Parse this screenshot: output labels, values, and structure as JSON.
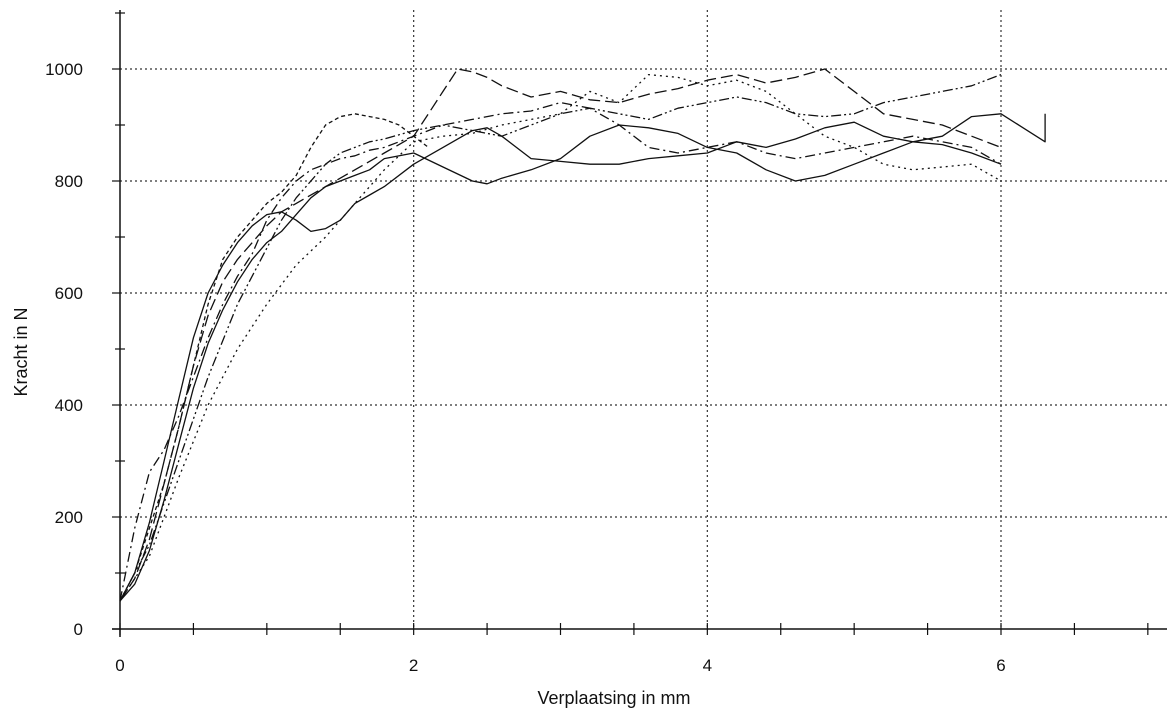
{
  "chart_data": {
    "type": "line",
    "xlabel": "Verplaatsing in mm",
    "ylabel": "Kracht in N",
    "xlim": [
      0,
      7.2
    ],
    "ylim": [
      0,
      1100
    ],
    "xticks": [
      0,
      2,
      4,
      6
    ],
    "yticks": [
      0,
      200,
      400,
      600,
      800,
      1000
    ],
    "x_tick_labels": [
      "0",
      "2",
      "4",
      "6"
    ],
    "y_tick_labels": [
      "0",
      "200",
      "400",
      "600",
      "800",
      "1000"
    ],
    "grid": true,
    "grid_style": "dotted",
    "legend": "none",
    "colors": {
      "line": "#111111",
      "grid": "#333333",
      "background": "#ffffff"
    },
    "series": [
      {
        "style": "solid",
        "x": [
          0,
          0.1,
          0.2,
          0.3,
          0.4,
          0.5,
          0.6,
          0.7,
          0.8,
          0.9,
          1.0,
          1.1,
          1.2,
          1.3,
          1.4,
          1.5,
          1.6,
          1.7,
          1.8,
          2.0,
          2.2,
          2.4,
          2.5,
          2.6,
          2.8,
          3.0,
          3.2,
          3.4,
          3.6,
          3.8,
          4.0,
          4.2,
          4.4,
          4.6,
          4.8,
          5.0,
          5.2,
          5.4,
          5.6,
          5.8,
          6.0,
          6.3,
          6.3
        ],
        "y": [
          50,
          100,
          190,
          300,
          410,
          520,
          600,
          650,
          690,
          720,
          740,
          745,
          730,
          710,
          715,
          730,
          760,
          775,
          790,
          830,
          860,
          890,
          895,
          880,
          840,
          835,
          830,
          830,
          840,
          845,
          850,
          870,
          860,
          875,
          895,
          905,
          880,
          870,
          880,
          915,
          920,
          870,
          920
        ]
      },
      {
        "style": "solid",
        "x": [
          0,
          0.1,
          0.2,
          0.3,
          0.4,
          0.5,
          0.6,
          0.7,
          0.8,
          0.9,
          1.0,
          1.1,
          1.2,
          1.3,
          1.4,
          1.5,
          1.6,
          1.7,
          1.8,
          2.0,
          2.2,
          2.4,
          2.5,
          2.6,
          2.8,
          3.0,
          3.2,
          3.4,
          3.6,
          3.8,
          4.0,
          4.2,
          4.4,
          4.6,
          4.8,
          5.0,
          5.2,
          5.4,
          5.6,
          5.8,
          6.0
        ],
        "y": [
          50,
          80,
          140,
          230,
          330,
          430,
          510,
          570,
          620,
          660,
          690,
          710,
          740,
          770,
          790,
          800,
          810,
          820,
          840,
          850,
          825,
          800,
          795,
          805,
          820,
          840,
          880,
          900,
          895,
          885,
          860,
          850,
          820,
          800,
          810,
          830,
          850,
          870,
          865,
          850,
          830
        ]
      },
      {
        "style": "dashed",
        "x": [
          0,
          0.1,
          0.2,
          0.3,
          0.4,
          0.5,
          0.6,
          0.7,
          0.8,
          0.9,
          1.0,
          1.1,
          1.2,
          1.4,
          1.6,
          1.8,
          2.0,
          2.1,
          2.2,
          2.3,
          2.4,
          2.5,
          2.6,
          2.8,
          3.0,
          3.2,
          3.4,
          3.6,
          3.8,
          4.0,
          4.2,
          4.4,
          4.6,
          4.8,
          5.0,
          5.2,
          5.4,
          5.6,
          5.8,
          6.0
        ],
        "y": [
          50,
          90,
          160,
          260,
          360,
          470,
          560,
          620,
          660,
          690,
          720,
          745,
          760,
          790,
          820,
          850,
          880,
          920,
          960,
          1000,
          995,
          985,
          970,
          950,
          960,
          945,
          940,
          955,
          965,
          980,
          990,
          975,
          985,
          1000,
          960,
          920,
          910,
          900,
          880,
          860
        ]
      },
      {
        "style": "dotted",
        "x": [
          0,
          0.2,
          0.4,
          0.6,
          0.8,
          1.0,
          1.2,
          1.4,
          1.6,
          1.8,
          2.0,
          2.2,
          2.4,
          2.6,
          2.8,
          3.0,
          3.2,
          3.4,
          3.6,
          3.8,
          4.0,
          4.2,
          4.4,
          4.6,
          4.8,
          5.0,
          5.2,
          5.4,
          5.6,
          5.8,
          6.0
        ],
        "y": [
          50,
          130,
          270,
          400,
          500,
          580,
          650,
          700,
          760,
          820,
          870,
          880,
          885,
          900,
          910,
          920,
          960,
          940,
          990,
          985,
          970,
          980,
          960,
          920,
          880,
          860,
          830,
          820,
          825,
          830,
          800
        ]
      },
      {
        "style": "dash-dot",
        "x": [
          0,
          0.1,
          0.2,
          0.3,
          0.4,
          0.5,
          0.6,
          0.7,
          0.8,
          0.9,
          1.0,
          1.1,
          1.2,
          1.3,
          1.4,
          1.5,
          1.6,
          1.7,
          1.8,
          2.0,
          2.2,
          2.4,
          2.6,
          2.8,
          3.0,
          3.2,
          3.4,
          3.6,
          3.8,
          4.0,
          4.2,
          4.4,
          4.6,
          4.8,
          5.0,
          5.2,
          5.4,
          5.6,
          5.8,
          6.0
        ],
        "y": [
          50,
          180,
          280,
          320,
          380,
          450,
          520,
          580,
          630,
          670,
          730,
          770,
          800,
          820,
          830,
          840,
          845,
          855,
          860,
          880,
          900,
          910,
          920,
          925,
          940,
          930,
          900,
          860,
          850,
          860,
          870,
          850,
          840,
          850,
          860,
          870,
          880,
          870,
          860,
          830
        ]
      },
      {
        "style": "dash-dot-dot",
        "x": [
          0,
          0.2,
          0.4,
          0.6,
          0.8,
          1.0,
          1.1,
          1.2,
          1.3,
          1.4,
          1.5,
          1.6,
          1.7,
          1.8,
          2.0,
          2.2,
          2.4,
          2.6,
          2.8,
          3.0,
          3.2,
          3.4,
          3.6,
          3.8,
          4.0,
          4.2,
          4.4,
          4.6,
          4.8,
          5.0,
          5.2,
          5.4,
          5.6,
          5.8,
          6.0
        ],
        "y": [
          50,
          150,
          300,
          450,
          580,
          680,
          730,
          770,
          800,
          830,
          850,
          860,
          870,
          875,
          890,
          900,
          890,
          880,
          900,
          920,
          930,
          920,
          910,
          930,
          940,
          950,
          940,
          920,
          915,
          920,
          940,
          950,
          960,
          970,
          990
        ]
      },
      {
        "style": "short-dash",
        "x": [
          0,
          0.1,
          0.2,
          0.3,
          0.4,
          0.5,
          0.6,
          0.7,
          0.8,
          0.9,
          1.0,
          1.1,
          1.2,
          1.3,
          1.4,
          1.5,
          1.6,
          1.7,
          1.8,
          1.9,
          2.0,
          2.1
        ],
        "y": [
          50,
          100,
          180,
          260,
          360,
          470,
          580,
          660,
          700,
          730,
          760,
          780,
          810,
          860,
          900,
          915,
          920,
          915,
          910,
          900,
          880,
          860
        ]
      }
    ]
  }
}
